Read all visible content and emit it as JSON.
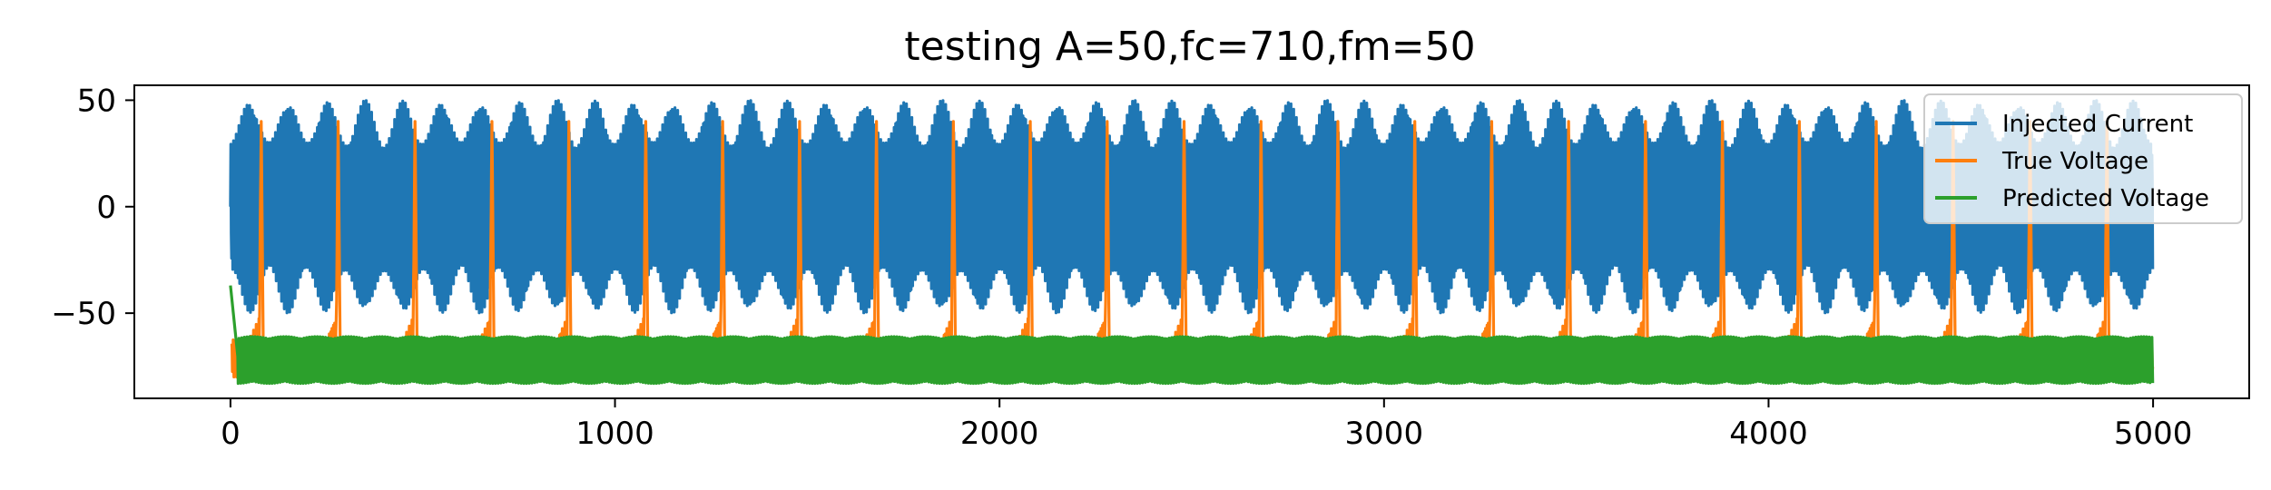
{
  "chart_data": {
    "type": "line",
    "title": "testing A=50,fc=710,fm=50",
    "xlabel": "",
    "ylabel": "",
    "xlim": [
      -250,
      5250
    ],
    "ylim": [
      -90,
      57
    ],
    "xticks": [
      0,
      1000,
      2000,
      3000,
      4000,
      5000
    ],
    "xtick_labels": [
      "0",
      "1000",
      "2000",
      "3000",
      "4000",
      "5000"
    ],
    "yticks": [
      50,
      0,
      -50
    ],
    "ytick_labels": [
      "50",
      "0",
      "−50"
    ],
    "grid": false,
    "legend_position": "top-right",
    "sample_count": 5000,
    "series": [
      {
        "name": "Injected Current",
        "color": "#1f77b4",
        "description_values": {
          "amplitude": 50,
          "carrier_cycles_per_sample_window": 710,
          "modulation_frequency": 50,
          "envelope_min_amplitude": 30,
          "envelope_period_samples": 100,
          "start_value": 0
        }
      },
      {
        "name": "True Voltage",
        "color": "#ff7f0e",
        "description_values": {
          "baseline_min": -80,
          "baseline_max": -62,
          "spike_peak": 40,
          "spike_period_samples": 200,
          "first_spike_at": 80,
          "start_value": -65
        }
      },
      {
        "name": "Predicted Voltage",
        "color": "#2ca02c",
        "description_values": {
          "baseline_min": -83,
          "baseline_max": -61,
          "initial_value": -37,
          "initial_transient_end": 20,
          "start_value": -37
        }
      }
    ]
  }
}
